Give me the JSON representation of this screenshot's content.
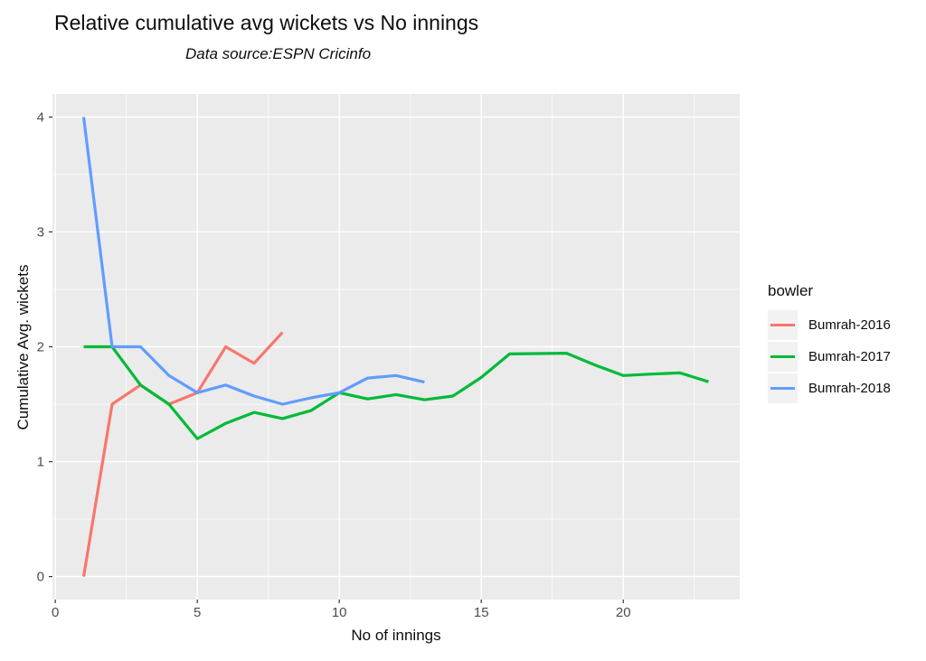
{
  "chart_data": {
    "type": "line",
    "title": "Relative cumulative avg wickets vs No innings",
    "subtitle": "Data source:ESPN Cricinfo",
    "xlabel": "No of innings",
    "ylabel": "Cumulative Avg. wickets",
    "xlim": [
      -0.1,
      24.1
    ],
    "ylim": [
      -0.2,
      4.2
    ],
    "xticks": [
      0,
      5,
      10,
      15,
      20
    ],
    "yticks": [
      0,
      1,
      2,
      3,
      4
    ],
    "xminor": [
      2.5,
      7.5,
      12.5,
      17.5,
      22.5
    ],
    "yminor": [
      0.5,
      1.5,
      2.5,
      3.5
    ],
    "grid": true,
    "panel_bg": "#EBEBEB",
    "grid_color": "#FFFFFF",
    "tick_color": "#333333",
    "tick_label_color": "#4D4D4D",
    "legend_title": "bowler",
    "legend_position": "right",
    "legend_key_bg": "#F2F2F2",
    "series": [
      {
        "name": "Bumrah-2016",
        "color": "#F8766D",
        "x": [
          1,
          2,
          3,
          4,
          5,
          6,
          7,
          8
        ],
        "y": [
          0,
          1.5,
          1.6667,
          1.5,
          1.6,
          2,
          1.8571,
          2.125
        ]
      },
      {
        "name": "Bumrah-2017",
        "color": "#00BA38",
        "x": [
          1,
          2,
          3,
          4,
          5,
          6,
          7,
          8,
          9,
          10,
          11,
          12,
          13,
          14,
          15,
          16,
          17,
          18,
          19,
          20,
          21,
          22,
          23
        ],
        "y": [
          2,
          2,
          1.6667,
          1.5,
          1.2,
          1.3333,
          1.4286,
          1.375,
          1.4444,
          1.6,
          1.5455,
          1.5833,
          1.5385,
          1.5714,
          1.7333,
          1.9375,
          1.9412,
          1.9444,
          1.8421,
          1.75,
          1.7619,
          1.7727,
          1.6957
        ]
      },
      {
        "name": "Bumrah-2018",
        "color": "#619CFF",
        "x": [
          1,
          2,
          3,
          4,
          5,
          6,
          7,
          8,
          9,
          10,
          11,
          12,
          13
        ],
        "y": [
          4,
          2,
          2,
          1.75,
          1.6,
          1.6667,
          1.5714,
          1.5,
          1.5556,
          1.6,
          1.7273,
          1.75,
          1.6923
        ]
      }
    ]
  }
}
